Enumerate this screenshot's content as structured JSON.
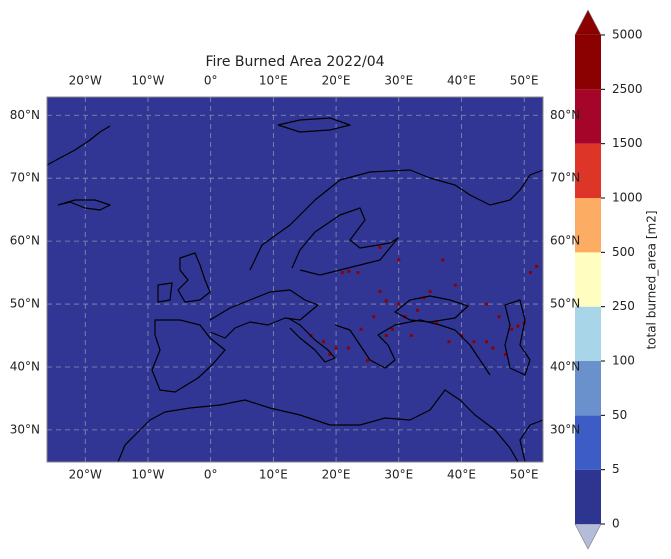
{
  "chart_data": {
    "type": "map",
    "title": "Fire Burned Area 2022/04",
    "xlim": [
      -26.1,
      53.0
    ],
    "ylim": [
      24.9,
      82.9
    ],
    "xticks": [
      {
        "value": -20,
        "label": "20°W"
      },
      {
        "value": -10,
        "label": "10°W"
      },
      {
        "value": 0,
        "label": "0°"
      },
      {
        "value": 10,
        "label": "10°E"
      },
      {
        "value": 20,
        "label": "20°E"
      },
      {
        "value": 30,
        "label": "30°E"
      },
      {
        "value": 40,
        "label": "40°E"
      },
      {
        "value": 50,
        "label": "50°E"
      }
    ],
    "yticks": [
      {
        "value": 30,
        "label": "30°N"
      },
      {
        "value": 40,
        "label": "40°N"
      },
      {
        "value": 50,
        "label": "50°N"
      },
      {
        "value": 60,
        "label": "60°N"
      },
      {
        "value": 70,
        "label": "70°N"
      },
      {
        "value": 80,
        "label": "80°N"
      }
    ],
    "grid": true,
    "background_color": "#313695",
    "points": {
      "color": "#8b0000",
      "x": [
        21,
        22,
        23.5,
        27,
        28,
        30,
        31,
        33,
        34,
        35,
        26,
        24,
        20,
        18,
        16,
        19,
        22,
        25,
        28,
        29,
        32,
        36,
        38,
        40,
        42,
        44,
        45,
        47,
        48,
        49,
        50,
        51,
        52,
        46,
        44,
        37,
        39,
        30,
        27
      ],
      "y": [
        55,
        55.2,
        55,
        52,
        50.5,
        50,
        48,
        49,
        51,
        52,
        48,
        46,
        43,
        44,
        45,
        42,
        43,
        41,
        45,
        46,
        45,
        47,
        44,
        45,
        44,
        44,
        43,
        42,
        46,
        46.5,
        47,
        55,
        56,
        48,
        50,
        57,
        53,
        57,
        59
      ]
    },
    "colorbar": {
      "label": "total burned_area [m2]",
      "levels": [
        0,
        5,
        50,
        100,
        250,
        500,
        1000,
        1500,
        2500,
        5000
      ],
      "colors": [
        "#2e3591",
        "#3e5cc5",
        "#6b91cc",
        "#a9d5e8",
        "#fffec0",
        "#fdac64",
        "#dd3528",
        "#a50528",
        "#8b0000"
      ],
      "under_color": "#b5bcd9",
      "over_color": "#8b0000"
    }
  }
}
